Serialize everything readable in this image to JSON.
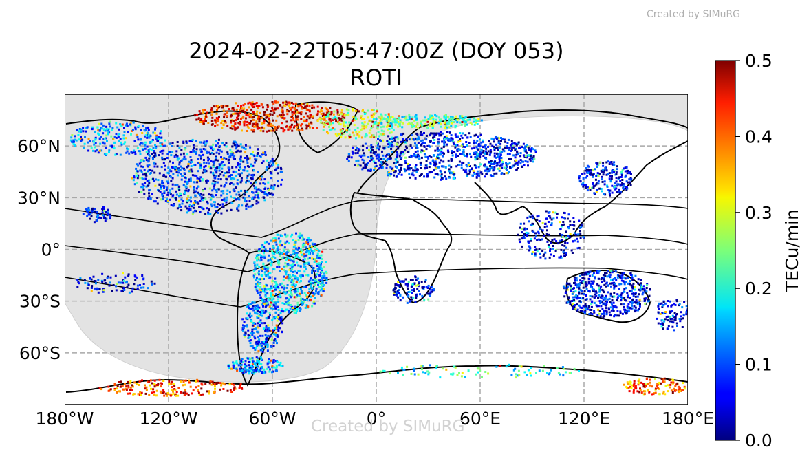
{
  "watermark_top": "Created by SIMuRG",
  "watermark_bottom": "Created by SIMuRG",
  "title_line1": "2024-02-22T05:47:00Z (DOY 053)",
  "title_line2": "ROTI",
  "map": {
    "projection": "plate-carree",
    "lon_range": [
      -180,
      180
    ],
    "lat_range": [
      -90,
      90
    ],
    "x_ticks": [
      {
        "lon": -180,
        "label": "180°W"
      },
      {
        "lon": -120,
        "label": "120°W"
      },
      {
        "lon": -60,
        "label": "60°W"
      },
      {
        "lon": 0,
        "label": "0°"
      },
      {
        "lon": 60,
        "label": "60°E"
      },
      {
        "lon": 120,
        "label": "120°E"
      },
      {
        "lon": 180,
        "label": "180°E"
      }
    ],
    "y_ticks": [
      {
        "lat": 60,
        "label": "60°N"
      },
      {
        "lat": 30,
        "label": "30°N"
      },
      {
        "lat": 0,
        "label": "0°"
      },
      {
        "lat": -30,
        "label": "30°S"
      },
      {
        "lat": -60,
        "label": "60°S"
      }
    ],
    "gridlines": true,
    "night_shading_color": "#e3e3e3",
    "magnetic_equator_lines": 3
  },
  "colorbar": {
    "label": "TECu/min",
    "min": 0.0,
    "max": 0.5,
    "ticks": [
      "0.0",
      "0.1",
      "0.2",
      "0.3",
      "0.4",
      "0.5"
    ],
    "colormap": "jet"
  }
}
